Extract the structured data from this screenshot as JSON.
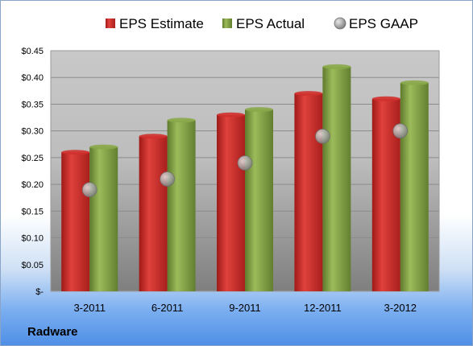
{
  "company": "Radware",
  "chart_data": {
    "type": "bar",
    "categories": [
      "3-2011",
      "6-2011",
      "9-2011",
      "12-2011",
      "3-2012"
    ],
    "series": [
      {
        "name": "EPS Estimate",
        "kind": "bar",
        "color": "#d0312d",
        "values": [
          0.26,
          0.29,
          0.33,
          0.37,
          0.36
        ]
      },
      {
        "name": "EPS Actual",
        "kind": "bar",
        "color": "#8aa84a",
        "values": [
          0.27,
          0.32,
          0.34,
          0.42,
          0.39
        ]
      },
      {
        "name": "EPS GAAP",
        "kind": "marker",
        "color": "#a0a0a0",
        "values": [
          0.19,
          0.21,
          0.24,
          0.29,
          0.3
        ]
      }
    ],
    "ylim": [
      0,
      0.45
    ],
    "yticks": [
      "$-",
      "$0.05",
      "$0.10",
      "$0.15",
      "$0.20",
      "$0.25",
      "$0.30",
      "$0.35",
      "$0.40",
      "$0.45"
    ],
    "legend_position": "top",
    "grid": true
  }
}
